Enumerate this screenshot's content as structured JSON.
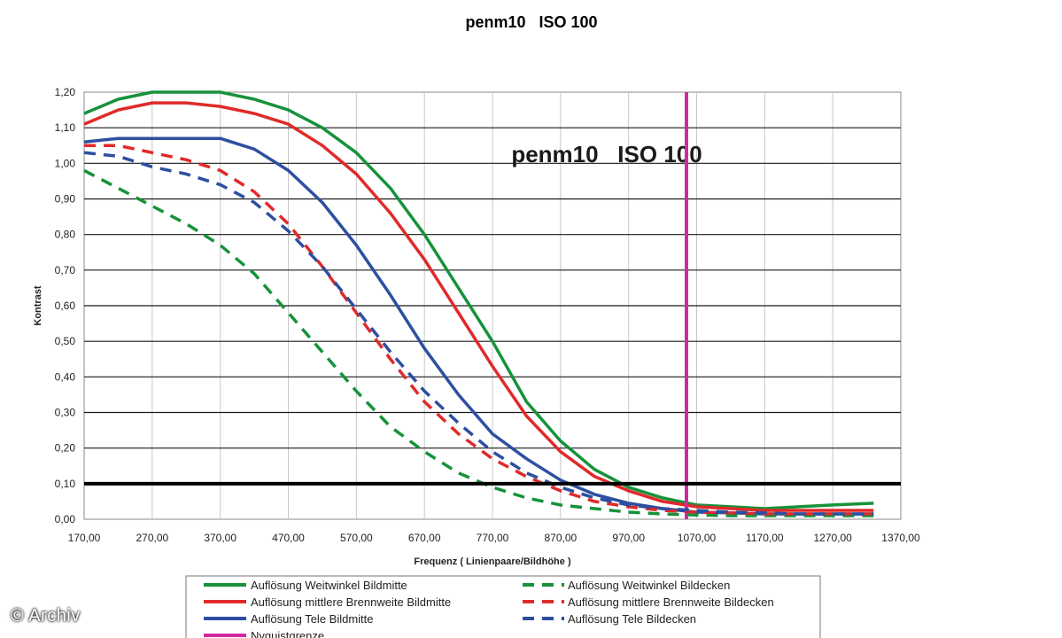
{
  "chart_data": {
    "type": "line",
    "title": "penm10   ISO 100",
    "inner_title": "penm10   ISO 100",
    "xlabel": "Frequenz ( Linienpaare/Bildhöhe )",
    "ylabel": "Kontrast",
    "xlim": [
      170,
      1370
    ],
    "ylim": [
      0,
      1.2
    ],
    "x_ticks": [
      "170,00",
      "270,00",
      "370,00",
      "470,00",
      "570,00",
      "670,00",
      "770,00",
      "870,00",
      "970,00",
      "1070,00",
      "1170,00",
      "1270,00",
      "1370,00"
    ],
    "y_ticks": [
      "0,00",
      "0,10",
      "0,20",
      "0,30",
      "0,40",
      "0,50",
      "0,60",
      "0,70",
      "0,80",
      "0,90",
      "1,00",
      "1,10",
      "1,20"
    ],
    "grid": true,
    "reference_lines": {
      "horizontal_y": 0.1,
      "nyquist_x": 1055
    },
    "series": [
      {
        "name": "Auflösung Weitwinkel Bildmitte",
        "color": "#16923a",
        "dash": "solid",
        "x": [
          170,
          220,
          270,
          320,
          370,
          420,
          470,
          520,
          570,
          620,
          670,
          720,
          770,
          820,
          870,
          920,
          970,
          1020,
          1070,
          1120,
          1170,
          1220,
          1270,
          1330
        ],
        "y": [
          1.14,
          1.18,
          1.2,
          1.2,
          1.2,
          1.18,
          1.15,
          1.1,
          1.03,
          0.93,
          0.8,
          0.65,
          0.5,
          0.33,
          0.22,
          0.14,
          0.09,
          0.06,
          0.04,
          0.035,
          0.03,
          0.035,
          0.04,
          0.045
        ]
      },
      {
        "name": "Auflösung mittlere Brennweite Bildmitte",
        "color": "#e02a2a",
        "dash": "solid",
        "x": [
          170,
          220,
          270,
          320,
          370,
          420,
          470,
          520,
          570,
          620,
          670,
          720,
          770,
          820,
          870,
          920,
          970,
          1020,
          1070,
          1120,
          1170,
          1220,
          1270,
          1330
        ],
        "y": [
          1.11,
          1.15,
          1.17,
          1.17,
          1.16,
          1.14,
          1.11,
          1.05,
          0.97,
          0.86,
          0.73,
          0.58,
          0.43,
          0.29,
          0.19,
          0.12,
          0.08,
          0.05,
          0.035,
          0.03,
          0.025,
          0.025,
          0.025,
          0.025
        ]
      },
      {
        "name": "Auflösung Tele Bildmitte",
        "color": "#2d4fa0",
        "dash": "solid",
        "x": [
          170,
          220,
          270,
          320,
          370,
          420,
          470,
          520,
          570,
          620,
          670,
          720,
          770,
          820,
          870,
          920,
          970,
          1020,
          1070,
          1120,
          1170,
          1220,
          1270,
          1330
        ],
        "y": [
          1.06,
          1.07,
          1.07,
          1.07,
          1.07,
          1.04,
          0.98,
          0.89,
          0.77,
          0.63,
          0.48,
          0.35,
          0.24,
          0.17,
          0.11,
          0.07,
          0.045,
          0.03,
          0.02,
          0.018,
          0.015,
          0.015,
          0.015,
          0.015
        ]
      },
      {
        "name": "Nyquistgrenze",
        "color": "#d02a9e",
        "dash": "solid",
        "x": [
          1055,
          1055
        ],
        "y": [
          0,
          1.2
        ]
      },
      {
        "name": "Auflösung Weitwinkel Bildecken",
        "color": "#16923a",
        "dash": "dashed",
        "x": [
          170,
          220,
          270,
          320,
          370,
          420,
          470,
          520,
          570,
          620,
          670,
          720,
          770,
          820,
          870,
          920,
          970,
          1020,
          1070,
          1120,
          1170,
          1220,
          1270,
          1330
        ],
        "y": [
          0.98,
          0.93,
          0.88,
          0.83,
          0.77,
          0.69,
          0.58,
          0.47,
          0.36,
          0.26,
          0.19,
          0.13,
          0.09,
          0.06,
          0.04,
          0.03,
          0.02,
          0.015,
          0.012,
          0.01,
          0.01,
          0.01,
          0.01,
          0.01
        ]
      },
      {
        "name": "Auflösung mittlere Brennweite Bildecken",
        "color": "#e02a2a",
        "dash": "dashed",
        "x": [
          170,
          220,
          270,
          320,
          370,
          420,
          470,
          520,
          570,
          620,
          670,
          720,
          770,
          820,
          870,
          920,
          970,
          1020,
          1070,
          1120,
          1170,
          1220,
          1270,
          1330
        ],
        "y": [
          1.05,
          1.05,
          1.03,
          1.01,
          0.98,
          0.92,
          0.83,
          0.71,
          0.58,
          0.45,
          0.33,
          0.24,
          0.17,
          0.12,
          0.08,
          0.05,
          0.035,
          0.025,
          0.02,
          0.018,
          0.015,
          0.015,
          0.015,
          0.015
        ]
      },
      {
        "name": "Auflösung Tele Bildecken",
        "color": "#2d4fa0",
        "dash": "dashed",
        "x": [
          170,
          220,
          270,
          320,
          370,
          420,
          470,
          520,
          570,
          620,
          670,
          720,
          770,
          820,
          870,
          920,
          970,
          1020,
          1070,
          1120,
          1170,
          1220,
          1270,
          1330
        ],
        "y": [
          1.03,
          1.02,
          0.99,
          0.97,
          0.94,
          0.89,
          0.81,
          0.71,
          0.59,
          0.47,
          0.36,
          0.27,
          0.19,
          0.13,
          0.09,
          0.06,
          0.04,
          0.03,
          0.025,
          0.02,
          0.018,
          0.015,
          0.015,
          0.015
        ]
      }
    ],
    "legend": {
      "left": [
        "Auflösung Weitwinkel Bildmitte",
        "Auflösung mittlere Brennweite Bildmitte",
        "Auflösung Tele Bildmitte",
        "Nyquistgrenze"
      ],
      "right": [
        "Auflösung Weitwinkel Bildecken",
        "Auflösung mittlere Brennweite Bildecken",
        "Auflösung Tele Bildecken"
      ]
    }
  },
  "watermark": "© Archiv"
}
